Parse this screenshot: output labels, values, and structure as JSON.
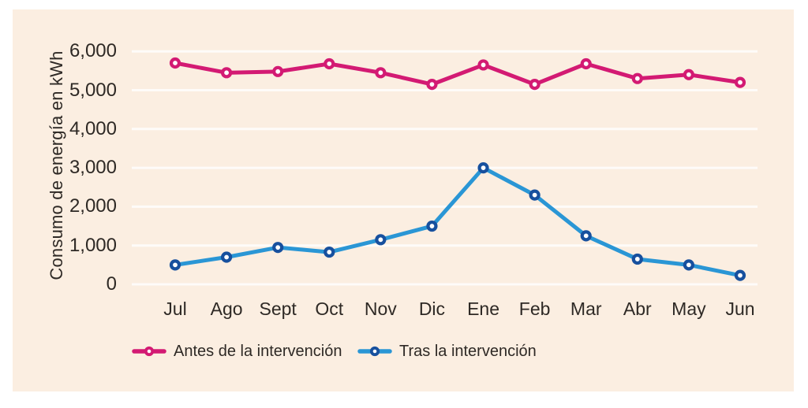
{
  "figure": {
    "background": "#ffffff",
    "panel_background": "#fbeee1",
    "text_color": "#2e2925"
  },
  "chart_data": {
    "type": "line",
    "title": "",
    "xlabel": "",
    "ylabel": "Consumo de energía en kWh",
    "categories": [
      "Jul",
      "Ago",
      "Sept",
      "Oct",
      "Nov",
      "Dic",
      "Ene",
      "Feb",
      "Mar",
      "Abr",
      "May",
      "Jun"
    ],
    "series": [
      {
        "id": "antes",
        "name": "Antes de la intervención",
        "color": "#d31a73",
        "marker_ring_color": "#d31a73",
        "marker_style": "open-circle",
        "values": [
          5700,
          5450,
          5480,
          5680,
          5450,
          5150,
          5650,
          5150,
          5680,
          5300,
          5400,
          5200
        ]
      },
      {
        "id": "tras",
        "name": "Tras la intervención",
        "color": "#2a96d5",
        "marker_ring_color": "#17509e",
        "marker_style": "open-circle",
        "values": [
          500,
          700,
          950,
          830,
          1150,
          1500,
          3000,
          2300,
          1250,
          650,
          500,
          230
        ]
      }
    ],
    "y_ticks": [
      0,
      1000,
      2000,
      3000,
      4000,
      5000,
      6000
    ],
    "y_tick_labels": [
      "0",
      "1,000",
      "2,000",
      "3,000",
      "4,000",
      "5,000",
      "6,000"
    ],
    "ylim": [
      0,
      6400
    ],
    "grid": true,
    "grid_color": "rgba(255,255,255,0.78)",
    "legend_position": "bottom"
  }
}
